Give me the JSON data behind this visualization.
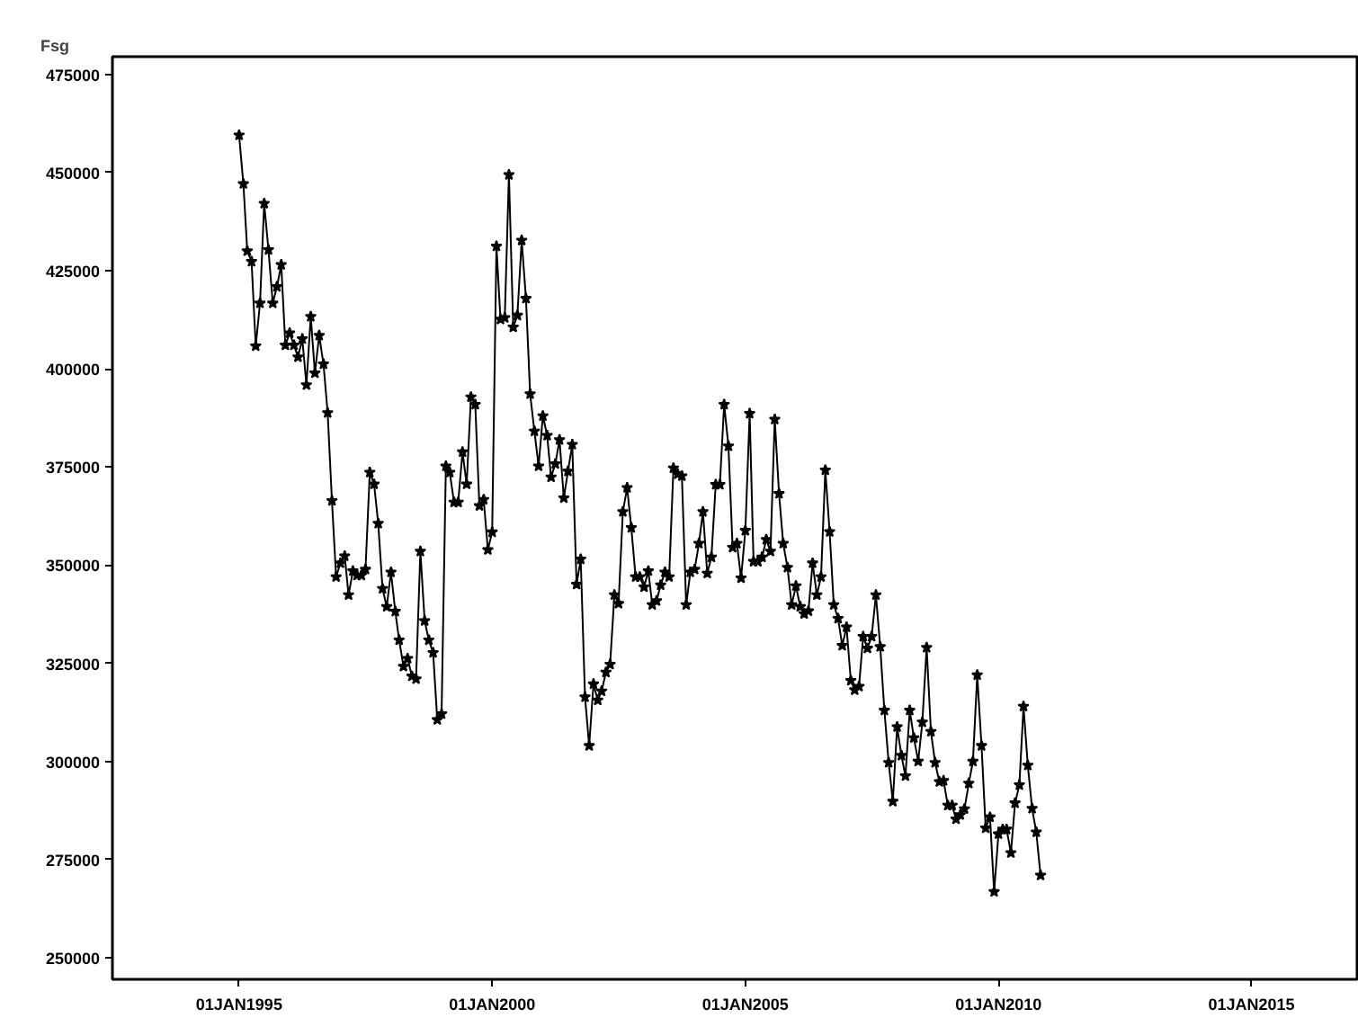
{
  "chart_data": {
    "type": "line",
    "ylabel": "Fsg",
    "marker": "star",
    "grid": false,
    "xlim": [
      "1992-07",
      "2017-02"
    ],
    "ylim": [
      244500,
      479500
    ],
    "xticks": [
      {
        "value": "1995-01-01",
        "label": "01JAN1995"
      },
      {
        "value": "2000-01-01",
        "label": "01JAN2000"
      },
      {
        "value": "2005-01-01",
        "label": "01JAN2005"
      },
      {
        "value": "2010-01-01",
        "label": "01JAN2010"
      },
      {
        "value": "2015-01-01",
        "label": "01JAN2015"
      }
    ],
    "yticks": [
      250000,
      275000,
      300000,
      325000,
      350000,
      375000,
      400000,
      425000,
      450000,
      475000
    ],
    "x": [
      "1995-01",
      "1995-02",
      "1995-03",
      "1995-04",
      "1995-05",
      "1995-06",
      "1995-07",
      "1995-08",
      "1995-09",
      "1995-10",
      "1995-11",
      "1995-12",
      "1996-01",
      "1996-02",
      "1996-03",
      "1996-04",
      "1996-05",
      "1996-06",
      "1996-07",
      "1996-08",
      "1996-09",
      "1996-10",
      "1996-11",
      "1996-12",
      "1997-01",
      "1997-02",
      "1997-03",
      "1997-04",
      "1997-05",
      "1997-06",
      "1997-07",
      "1997-08",
      "1997-09",
      "1997-10",
      "1997-11",
      "1997-12",
      "1998-01",
      "1998-02",
      "1998-03",
      "1998-04",
      "1998-05",
      "1998-06",
      "1998-07",
      "1998-08",
      "1998-09",
      "1998-10",
      "1998-11",
      "1998-12",
      "1999-01",
      "1999-02",
      "1999-03",
      "1999-04",
      "1999-05",
      "1999-06",
      "1999-07",
      "1999-08",
      "1999-09",
      "1999-10",
      "1999-11",
      "1999-12",
      "2000-01",
      "2000-02",
      "2000-03",
      "2000-04",
      "2000-05",
      "2000-06",
      "2000-07",
      "2000-08",
      "2000-09",
      "2000-10",
      "2000-11",
      "2000-12",
      "2001-01",
      "2001-02",
      "2001-03",
      "2001-04",
      "2001-05",
      "2001-06",
      "2001-07",
      "2001-08",
      "2001-09",
      "2001-10",
      "2001-11",
      "2001-12",
      "2002-01",
      "2002-02",
      "2002-03",
      "2002-04",
      "2002-05",
      "2002-06",
      "2002-07",
      "2002-08",
      "2002-09",
      "2002-10",
      "2002-11",
      "2002-12",
      "2003-01",
      "2003-02",
      "2003-03",
      "2003-04",
      "2003-05",
      "2003-06",
      "2003-07",
      "2003-08",
      "2003-09",
      "2003-10",
      "2003-11",
      "2003-12",
      "2004-01",
      "2004-02",
      "2004-03",
      "2004-04",
      "2004-05",
      "2004-06",
      "2004-07",
      "2004-08",
      "2004-09",
      "2004-10",
      "2004-11",
      "2004-12",
      "2005-01",
      "2005-02",
      "2005-03",
      "2005-04",
      "2005-05",
      "2005-06",
      "2005-07",
      "2005-08",
      "2005-09",
      "2005-10",
      "2005-11",
      "2005-12",
      "2006-01",
      "2006-02",
      "2006-03",
      "2006-04",
      "2006-05",
      "2006-06",
      "2006-07",
      "2006-08",
      "2006-09",
      "2006-10",
      "2006-11",
      "2006-12",
      "2007-01",
      "2007-02",
      "2007-03",
      "2007-04",
      "2007-05",
      "2007-06",
      "2007-07",
      "2007-08",
      "2007-09",
      "2007-10",
      "2007-11",
      "2007-12",
      "2008-01",
      "2008-02",
      "2008-03",
      "2008-04",
      "2008-05",
      "2008-06",
      "2008-07",
      "2008-08",
      "2008-09",
      "2008-10",
      "2008-11",
      "2008-12",
      "2009-01",
      "2009-02",
      "2009-03",
      "2009-04",
      "2009-05",
      "2009-06",
      "2009-07",
      "2009-08",
      "2009-09",
      "2009-10",
      "2009-11",
      "2009-12",
      "2010-01",
      "2010-02",
      "2010-03",
      "2010-04",
      "2010-05",
      "2010-06",
      "2010-07",
      "2010-08",
      "2010-09",
      "2010-10",
      "2010-11"
    ],
    "series": [
      {
        "color": "#000000",
        "values": [
          459500,
          447100,
          430000,
          427300,
          405800,
          416700,
          442100,
          430300,
          416700,
          420900,
          426500,
          406000,
          409100,
          406000,
          403000,
          407600,
          395900,
          413300,
          398900,
          408500,
          401200,
          388800,
          366400,
          347000,
          350500,
          352300,
          342400,
          348500,
          347400,
          347400,
          348900,
          373600,
          370600,
          360600,
          344000,
          339400,
          348200,
          338200,
          330900,
          324200,
          326200,
          321700,
          321000,
          353500,
          335800,
          330900,
          327700,
          310600,
          312100,
          375200,
          373600,
          366000,
          366000,
          378800,
          370600,
          392800,
          390900,
          365100,
          366700,
          353900,
          358400,
          431200,
          412600,
          413000,
          449400,
          410600,
          413600,
          432700,
          417900,
          393600,
          384100,
          375200,
          388000,
          383000,
          372400,
          375800,
          381900,
          367100,
          373900,
          380700,
          345100,
          351500,
          316400,
          304000,
          319700,
          315600,
          317900,
          322700,
          324700,
          342400,
          340200,
          363600,
          369700,
          359500,
          347000,
          347000,
          344400,
          348500,
          339900,
          340900,
          344900,
          348200,
          347000,
          374700,
          373200,
          372700,
          339900,
          348200,
          348900,
          355500,
          363600,
          347900,
          352000,
          370500,
          370500,
          390900,
          380300,
          354500,
          355500,
          346700,
          358800,
          388600,
          350900,
          350900,
          352000,
          356500,
          353500,
          387100,
          368200,
          355500,
          349400,
          339900,
          344700,
          339400,
          337600,
          338300,
          350500,
          342400,
          347000,
          374200,
          358500,
          339900,
          336400,
          329500,
          334200,
          320600,
          318200,
          319100,
          331800,
          328800,
          331800,
          342400,
          329200,
          313000,
          299700,
          289800,
          308800,
          301500,
          296300,
          313000,
          306000,
          300000,
          310000,
          329000,
          307600,
          299700,
          294800,
          295100,
          288800,
          288800,
          285300,
          286400,
          287900,
          294400,
          300000,
          322000,
          304000,
          283000,
          285800,
          266800,
          281500,
          282700,
          282700,
          276700,
          289400,
          294000,
          314000,
          299000,
          288000,
          282000,
          271000
        ]
      }
    ]
  }
}
